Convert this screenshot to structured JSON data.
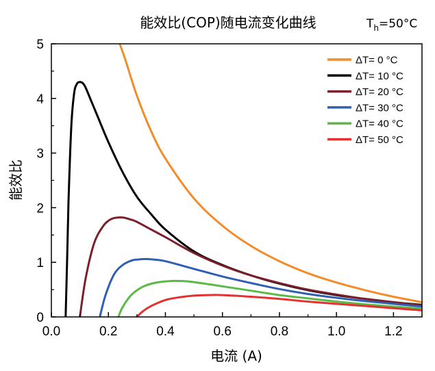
{
  "chart_data": {
    "type": "line",
    "title": "能效比(COP)随电流变化曲线",
    "subtitle": {
      "main": "T",
      "sub": "h",
      "rest": "=50°C"
    },
    "xlabel": "电流 (A)",
    "ylabel": "能效比",
    "xlim": [
      0.0,
      1.3
    ],
    "ylim": [
      0,
      5
    ],
    "xticks": [
      "0.0",
      "0.2",
      "0.4",
      "0.6",
      "0.8",
      "1.0",
      "1.2"
    ],
    "xtick_values": [
      0.0,
      0.2,
      0.4,
      0.6,
      0.8,
      1.0,
      1.2
    ],
    "yticks": [
      "0",
      "1",
      "2",
      "3",
      "4",
      "5"
    ],
    "ytick_values": [
      0,
      1,
      2,
      3,
      4,
      5
    ],
    "grid": false,
    "legend_position": "top-right",
    "series": [
      {
        "name": "ΔT= 0 °C",
        "color": "#f28c28",
        "x": [
          0.24,
          0.26,
          0.3,
          0.35,
          0.4,
          0.5,
          0.6,
          0.7,
          0.8,
          0.9,
          1.0,
          1.1,
          1.2,
          1.3
        ],
        "y": [
          5.0,
          4.7,
          4.05,
          3.4,
          2.9,
          2.17,
          1.67,
          1.3,
          1.02,
          0.8,
          0.63,
          0.49,
          0.37,
          0.27
        ]
      },
      {
        "name": "ΔT= 10 °C",
        "color": "#000000",
        "x": [
          0.05,
          0.055,
          0.06,
          0.07,
          0.08,
          0.09,
          0.1,
          0.11,
          0.12,
          0.14,
          0.16,
          0.2,
          0.25,
          0.3,
          0.35,
          0.4,
          0.5,
          0.6,
          0.7,
          0.8,
          0.9,
          1.0,
          1.1,
          1.2,
          1.3
        ],
        "y": [
          0.0,
          1.0,
          2.1,
          3.5,
          4.1,
          4.27,
          4.3,
          4.28,
          4.2,
          3.95,
          3.7,
          3.2,
          2.65,
          2.2,
          1.88,
          1.6,
          1.2,
          0.95,
          0.76,
          0.61,
          0.49,
          0.4,
          0.33,
          0.27,
          0.22
        ]
      },
      {
        "name": "ΔT= 20 °C",
        "color": "#7a1f2b",
        "x": [
          0.1,
          0.12,
          0.15,
          0.18,
          0.2,
          0.22,
          0.25,
          0.28,
          0.3,
          0.35,
          0.4,
          0.5,
          0.6,
          0.7,
          0.8,
          0.9,
          1.0,
          1.1,
          1.2,
          1.3
        ],
        "y": [
          0.0,
          0.7,
          1.35,
          1.65,
          1.76,
          1.81,
          1.82,
          1.78,
          1.74,
          1.6,
          1.46,
          1.17,
          0.94,
          0.76,
          0.62,
          0.5,
          0.41,
          0.33,
          0.27,
          0.21
        ]
      },
      {
        "name": "ΔT= 30 °C",
        "color": "#2f5fb3",
        "x": [
          0.17,
          0.19,
          0.22,
          0.25,
          0.28,
          0.3,
          0.33,
          0.36,
          0.4,
          0.5,
          0.6,
          0.7,
          0.8,
          0.9,
          1.0,
          1.1,
          1.2,
          1.3
        ],
        "y": [
          0.0,
          0.4,
          0.78,
          0.95,
          1.03,
          1.05,
          1.06,
          1.05,
          1.02,
          0.88,
          0.74,
          0.62,
          0.51,
          0.42,
          0.35,
          0.29,
          0.24,
          0.19
        ]
      },
      {
        "name": "ΔT= 40 °C",
        "color": "#5ab947",
        "x": [
          0.235,
          0.25,
          0.28,
          0.32,
          0.36,
          0.4,
          0.44,
          0.48,
          0.55,
          0.6,
          0.7,
          0.8,
          0.9,
          1.0,
          1.1,
          1.2,
          1.3
        ],
        "y": [
          0.0,
          0.18,
          0.4,
          0.55,
          0.62,
          0.65,
          0.66,
          0.65,
          0.6,
          0.56,
          0.48,
          0.4,
          0.34,
          0.28,
          0.23,
          0.19,
          0.15
        ]
      },
      {
        "name": "ΔT= 50 °C",
        "color": "#e53030",
        "x": [
          0.3,
          0.32,
          0.35,
          0.4,
          0.45,
          0.5,
          0.55,
          0.6,
          0.7,
          0.8,
          0.9,
          1.0,
          1.1,
          1.2,
          1.3
        ],
        "y": [
          0.0,
          0.1,
          0.2,
          0.31,
          0.36,
          0.39,
          0.4,
          0.4,
          0.37,
          0.33,
          0.28,
          0.24,
          0.2,
          0.16,
          0.12
        ]
      }
    ]
  }
}
